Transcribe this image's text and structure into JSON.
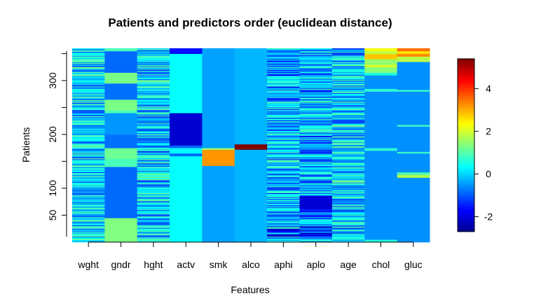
{
  "chart_data": {
    "type": "heatmap",
    "title": "Patients and predictors order (euclidean distance)",
    "xlabel": "Features",
    "ylabel": "Patients",
    "categories": [
      "wght",
      "gndr",
      "hght",
      "actv",
      "smk",
      "alco",
      "aphi",
      "aplo",
      "age",
      "chol",
      "gluc"
    ],
    "y_ticks": [
      50,
      100,
      200,
      300
    ],
    "ylim": [
      0,
      360
    ],
    "colorbar": {
      "ticks": [
        -2,
        0,
        2,
        4
      ],
      "range": [
        -2.7,
        5.4
      ],
      "colormap": [
        "#00008F",
        "#0000FF",
        "#0080FF",
        "#00FFFF",
        "#80FF80",
        "#FFFF00",
        "#FF8000",
        "#FF0000",
        "#800000"
      ]
    },
    "columns": [
      {
        "name": "wght",
        "segments": []
      },
      {
        "name": "gndr",
        "segments": [
          [
            0,
            45,
            1.35
          ],
          [
            45,
            140,
            -0.85
          ],
          [
            140,
            155,
            0.9
          ],
          [
            155,
            175,
            1.2
          ],
          [
            175,
            200,
            -0.8
          ],
          [
            200,
            240,
            -0.5
          ],
          [
            240,
            245,
            0.9
          ],
          [
            245,
            265,
            1.3
          ],
          [
            265,
            295,
            -0.8
          ],
          [
            295,
            315,
            1.3
          ],
          [
            315,
            355,
            -0.85
          ],
          [
            355,
            360,
            0.9
          ]
        ]
      },
      {
        "name": "hght",
        "segments": []
      },
      {
        "name": "actv",
        "segments": [
          [
            0,
            160,
            0.35
          ],
          [
            160,
            165,
            -0.9
          ],
          [
            165,
            175,
            0.35
          ],
          [
            175,
            180,
            -0.9
          ],
          [
            180,
            240,
            -2.1
          ],
          [
            240,
            350,
            0.35
          ],
          [
            350,
            360,
            -1.6
          ]
        ]
      },
      {
        "name": "smk",
        "segments": [
          [
            0,
            142,
            -0.4
          ],
          [
            142,
            172,
            3.2
          ],
          [
            172,
            175,
            1.5
          ],
          [
            175,
            360,
            -0.4
          ]
        ]
      },
      {
        "name": "alco",
        "segments": [
          [
            0,
            172,
            -0.25
          ],
          [
            172,
            182,
            5.4
          ],
          [
            182,
            360,
            -0.25
          ]
        ]
      },
      {
        "name": "aphi",
        "segments": []
      },
      {
        "name": "aplo",
        "segments": []
      },
      {
        "name": "age",
        "segments": []
      },
      {
        "name": "chol",
        "segments": [
          [
            0,
            5,
            0.6
          ],
          [
            5,
            170,
            -0.55
          ],
          [
            170,
            175,
            0.7
          ],
          [
            175,
            280,
            -0.55
          ],
          [
            280,
            285,
            0.7
          ],
          [
            285,
            310,
            -0.55
          ],
          [
            310,
            315,
            0.6
          ],
          [
            315,
            325,
            1.4
          ],
          [
            325,
            330,
            2.0
          ],
          [
            330,
            340,
            1.5
          ],
          [
            340,
            350,
            2.8
          ],
          [
            350,
            355,
            1.8
          ],
          [
            355,
            360,
            2.3
          ]
        ]
      },
      {
        "name": "gluc",
        "segments": [
          [
            0,
            120,
            -0.55
          ],
          [
            120,
            125,
            1.8
          ],
          [
            125,
            130,
            1.0
          ],
          [
            130,
            165,
            -0.55
          ],
          [
            165,
            168,
            0.8
          ],
          [
            168,
            215,
            -0.55
          ],
          [
            215,
            218,
            0.8
          ],
          [
            218,
            280,
            -0.55
          ],
          [
            280,
            283,
            0.8
          ],
          [
            283,
            335,
            -0.55
          ],
          [
            335,
            345,
            1.8
          ],
          [
            345,
            350,
            3.3
          ],
          [
            350,
            355,
            2.6
          ],
          [
            355,
            360,
            3.5
          ]
        ]
      }
    ]
  }
}
